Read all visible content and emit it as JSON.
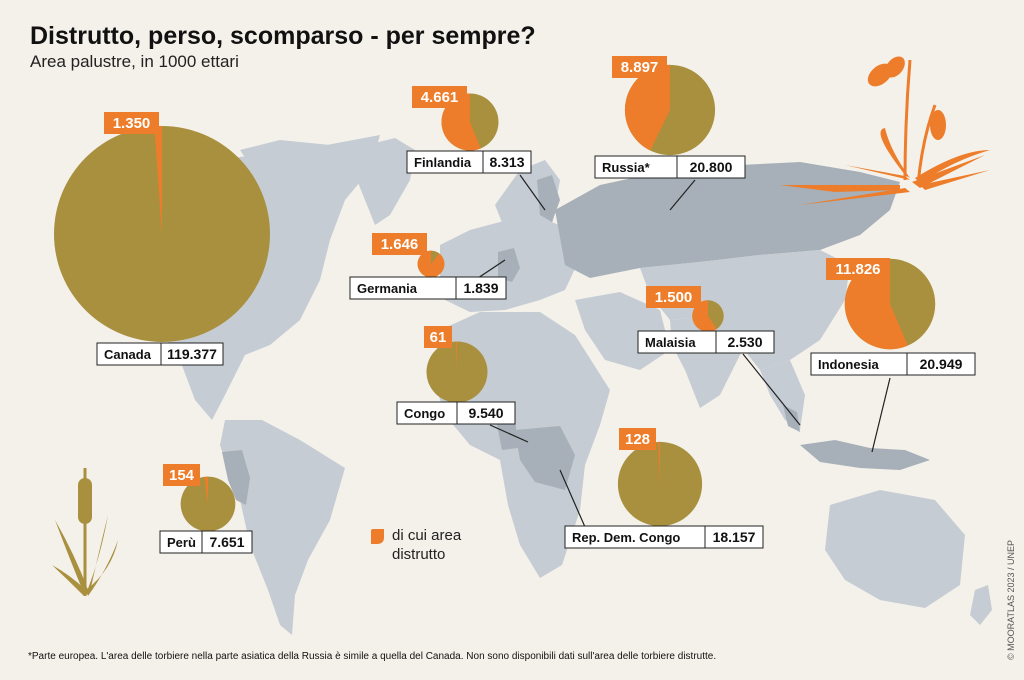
{
  "header": {
    "title": "Distrutto, perso, scomparso - per sempre?",
    "subtitle": "Area palustre, in 1000 ettari"
  },
  "legend": {
    "destroyed_label": "di cui area distrutto"
  },
  "footnote": "*Parte europea. L'area delle torbiere nella parte asiatica della Russia è simile a quella del Canada. Non sono disponibili dati sull'area delle torbiere distrutte.",
  "credit": "© MOORATLAS 2023 / UNEP",
  "colors": {
    "background": "#f4f1ea",
    "land": "#c5ccd3",
    "highlight_land": "#a7b0b8",
    "wetland_total": "#a9903f",
    "destroyed": "#ed7d2a"
  },
  "chart_data": {
    "type": "pie",
    "title": "Distrutto, perso, scomparso - per sempre?",
    "subtitle": "Area palustre, in 1000 ettari",
    "unit": "1000 ettari",
    "series": [
      {
        "name": "Area palustre"
      },
      {
        "name": "di cui area distrutto"
      }
    ],
    "countries": [
      {
        "name": "Canada",
        "total": "119.377",
        "destroyed": "1.350",
        "total_value": 119377,
        "destroyed_value": 1350
      },
      {
        "name": "Finlandia",
        "total": "8.313",
        "destroyed": "4.661",
        "total_value": 8313,
        "destroyed_value": 4661
      },
      {
        "name": "Russia*",
        "total": "20.800",
        "destroyed": "8.897",
        "total_value": 20800,
        "destroyed_value": 8897
      },
      {
        "name": "Germania",
        "total": "1.839",
        "destroyed": "1.646",
        "total_value": 1839,
        "destroyed_value": 1646
      },
      {
        "name": "Malaisia",
        "total": "2.530",
        "destroyed": "1.500",
        "total_value": 2530,
        "destroyed_value": 1500
      },
      {
        "name": "Indonesia",
        "total": "20.949",
        "destroyed": "11.826",
        "total_value": 20949,
        "destroyed_value": 11826
      },
      {
        "name": "Congo",
        "total": "9.540",
        "destroyed": "61",
        "total_value": 9540,
        "destroyed_value": 61
      },
      {
        "name": "Rep. Dem. Congo",
        "total": "18.157",
        "destroyed": "128",
        "total_value": 18157,
        "destroyed_value": 128
      },
      {
        "name": "Perù",
        "total": "7.651",
        "destroyed": "154",
        "total_value": 7651,
        "destroyed_value": 154
      }
    ]
  }
}
